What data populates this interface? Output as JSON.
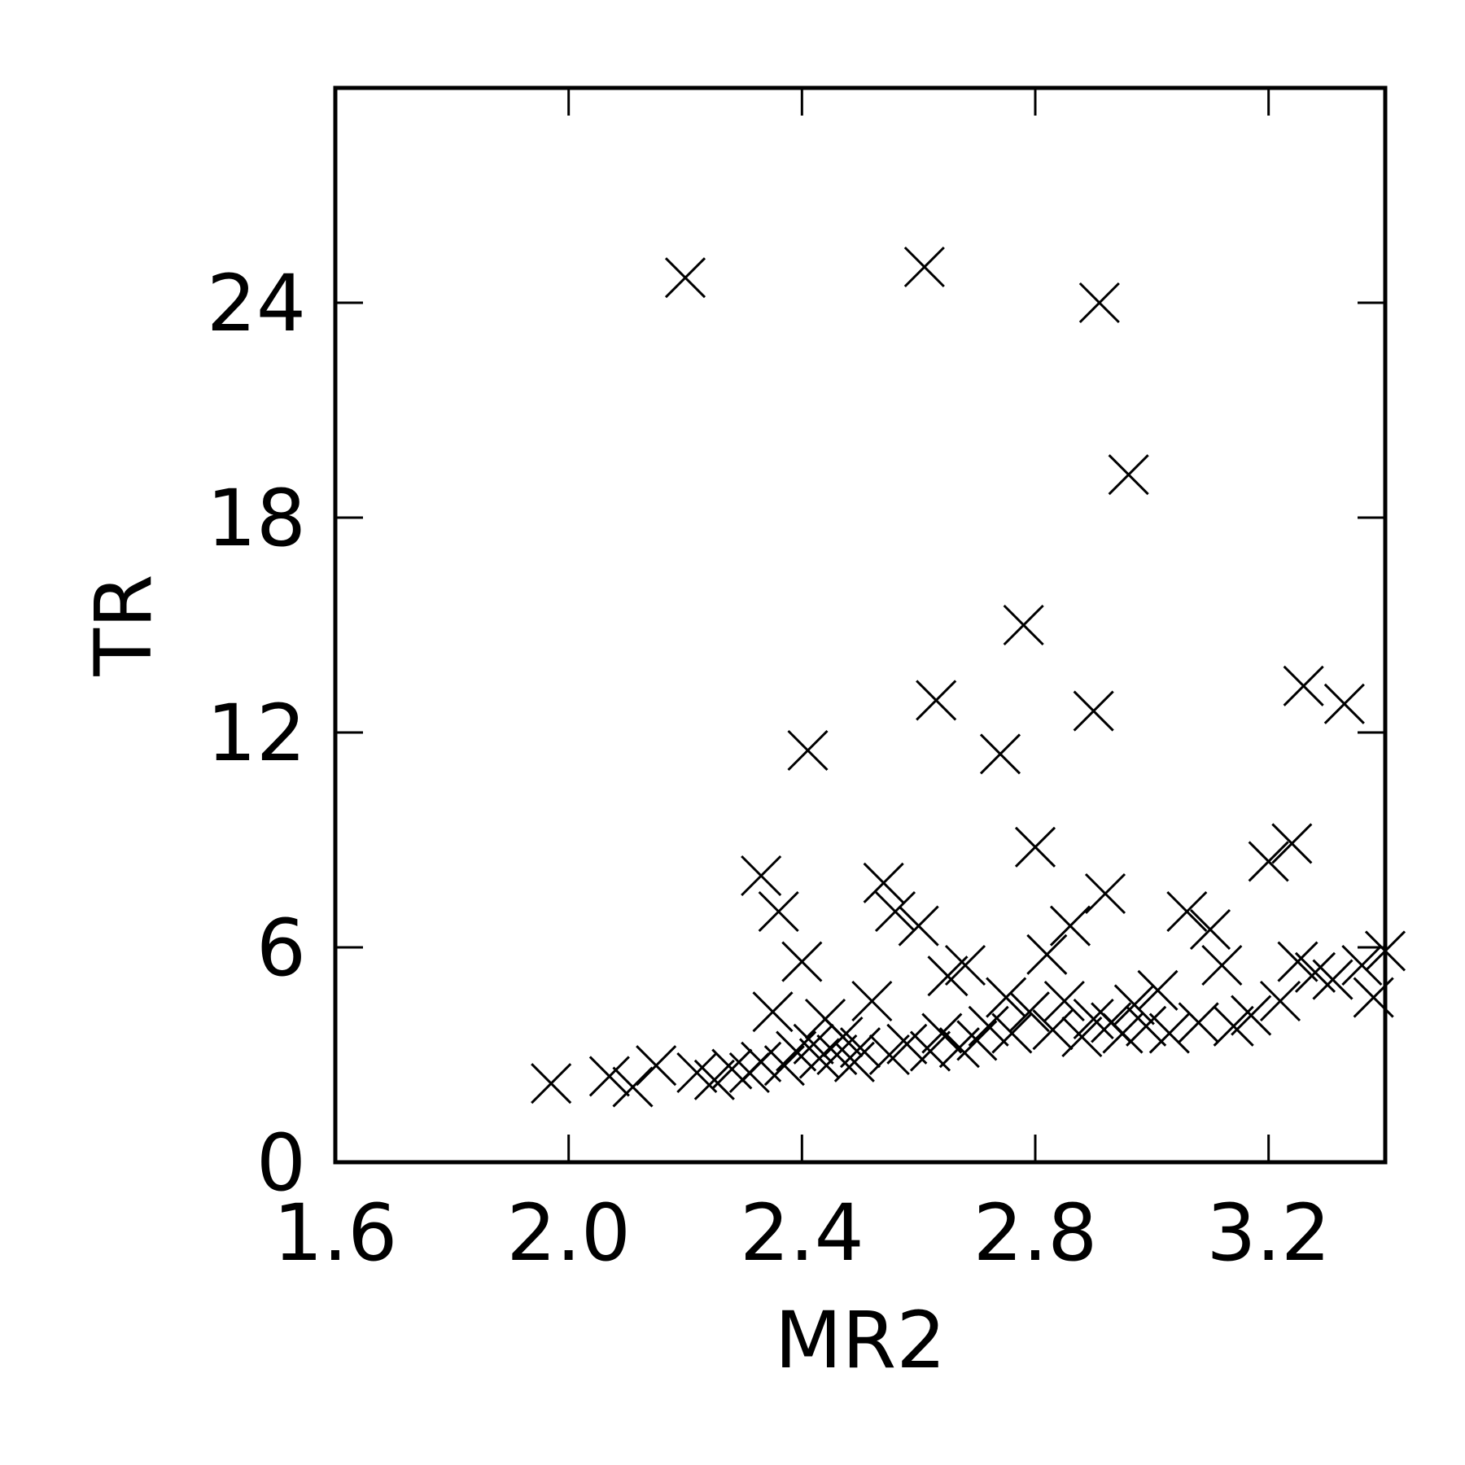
{
  "chart_data": {
    "type": "scatter",
    "title": "",
    "xlabel": "MR2",
    "ylabel": "TR",
    "xlim": [
      1.6,
      3.4
    ],
    "ylim": [
      0,
      30
    ],
    "xticks": [
      "1.6",
      "2.0",
      "2.4",
      "2.8",
      "3.2"
    ],
    "yticks": [
      "0",
      "6",
      "12",
      "18",
      "24"
    ],
    "marker": "x",
    "color": "#000000",
    "grid": false,
    "points": [
      [
        1.97,
        2.2
      ],
      [
        2.07,
        2.4
      ],
      [
        2.11,
        2.1
      ],
      [
        2.15,
        2.7
      ],
      [
        2.2,
        24.7
      ],
      [
        2.22,
        2.5
      ],
      [
        2.25,
        2.3
      ],
      [
        2.28,
        2.6
      ],
      [
        2.31,
        2.5
      ],
      [
        2.33,
        2.8
      ],
      [
        2.33,
        8.0
      ],
      [
        2.35,
        4.2
      ],
      [
        2.36,
        7.0
      ],
      [
        2.37,
        2.7
      ],
      [
        2.39,
        3.1
      ],
      [
        2.4,
        5.6
      ],
      [
        2.41,
        11.5
      ],
      [
        2.42,
        3.3
      ],
      [
        2.43,
        2.9
      ],
      [
        2.44,
        4.0
      ],
      [
        2.46,
        3.0
      ],
      [
        2.47,
        3.5
      ],
      [
        2.49,
        2.8
      ],
      [
        2.5,
        3.2
      ],
      [
        2.52,
        4.5
      ],
      [
        2.54,
        7.8
      ],
      [
        2.55,
        3.0
      ],
      [
        2.56,
        7.0
      ],
      [
        2.58,
        3.3
      ],
      [
        2.6,
        6.6
      ],
      [
        2.61,
        25.0
      ],
      [
        2.62,
        3.1
      ],
      [
        2.63,
        12.9
      ],
      [
        2.64,
        3.6
      ],
      [
        2.65,
        5.2
      ],
      [
        2.67,
        3.2
      ],
      [
        2.68,
        5.5
      ],
      [
        2.7,
        3.4
      ],
      [
        2.72,
        3.8
      ],
      [
        2.74,
        11.4
      ],
      [
        2.75,
        4.6
      ],
      [
        2.76,
        3.6
      ],
      [
        2.78,
        15.0
      ],
      [
        2.79,
        4.2
      ],
      [
        2.8,
        8.8
      ],
      [
        2.82,
        5.8
      ],
      [
        2.83,
        3.7
      ],
      [
        2.85,
        4.5
      ],
      [
        2.86,
        6.6
      ],
      [
        2.88,
        3.5
      ],
      [
        2.9,
        4.0
      ],
      [
        2.9,
        12.6
      ],
      [
        2.91,
        24.0
      ],
      [
        2.92,
        7.5
      ],
      [
        2.93,
        3.9
      ],
      [
        2.95,
        3.6
      ],
      [
        2.96,
        19.2
      ],
      [
        2.97,
        4.4
      ],
      [
        2.99,
        3.8
      ],
      [
        3.01,
        4.8
      ],
      [
        3.03,
        3.6
      ],
      [
        3.06,
        7.0
      ],
      [
        3.08,
        3.9
      ],
      [
        3.1,
        6.5
      ],
      [
        3.12,
        5.5
      ],
      [
        3.14,
        3.8
      ],
      [
        3.17,
        4.1
      ],
      [
        3.2,
        8.4
      ],
      [
        3.22,
        4.5
      ],
      [
        3.24,
        8.9
      ],
      [
        3.25,
        5.6
      ],
      [
        3.26,
        13.3
      ],
      [
        3.28,
        5.3
      ],
      [
        3.31,
        5.1
      ],
      [
        3.33,
        12.8
      ],
      [
        3.36,
        5.5
      ],
      [
        3.38,
        4.6
      ],
      [
        3.4,
        5.9
      ]
    ]
  }
}
